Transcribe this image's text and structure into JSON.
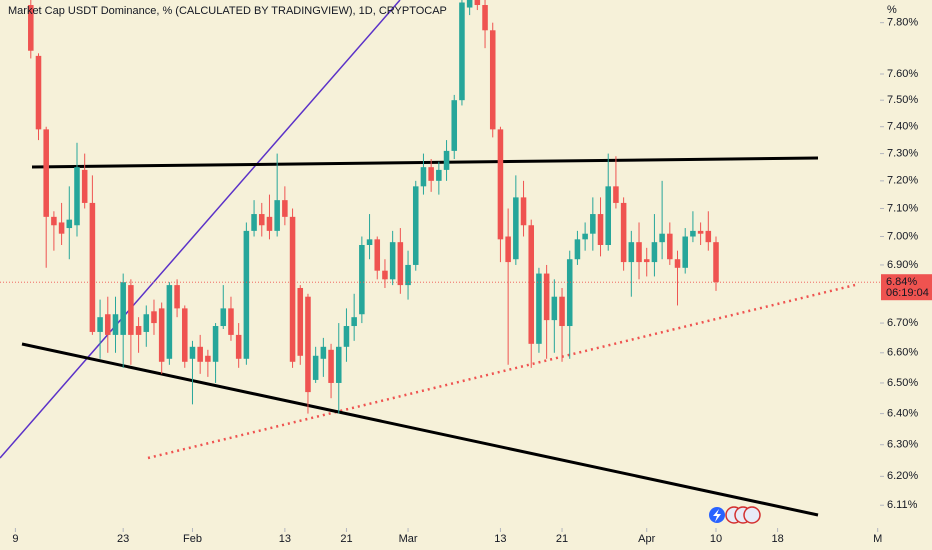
{
  "chart_data": {
    "type": "candlestick",
    "title": "Market Cap USDT Dominance, % (CALCULATED BY TRADINGVIEW), 1D, CRYPTOCAP",
    "y_unit": "%",
    "log_scale": true,
    "grid": false,
    "up_color": "#26a69a",
    "down_color": "#ef5350",
    "xlim": [
      7,
      121.3
    ],
    "xticks": [
      {
        "value": 9,
        "label": "9"
      },
      {
        "value": 23,
        "label": "23"
      },
      {
        "value": 32,
        "label": "Feb"
      },
      {
        "value": 44,
        "label": "13"
      },
      {
        "value": 52,
        "label": "21"
      },
      {
        "value": 60,
        "label": "Mar"
      },
      {
        "value": 72,
        "label": "13"
      },
      {
        "value": 80,
        "label": "21"
      },
      {
        "value": 91,
        "label": "Apr"
      },
      {
        "value": 100,
        "label": "10"
      },
      {
        "value": 108,
        "label": "18"
      },
      {
        "value": 121,
        "label": "M"
      }
    ],
    "ylim": [
      6.04,
      7.89
    ],
    "yticks": [
      {
        "value": 6.11,
        "label": "6.11%"
      },
      {
        "value": 6.2,
        "label": "6.20%"
      },
      {
        "value": 6.3,
        "label": "6.30%"
      },
      {
        "value": 6.4,
        "label": "6.40%"
      },
      {
        "value": 6.5,
        "label": "6.50%"
      },
      {
        "value": 6.6,
        "label": "6.60%"
      },
      {
        "value": 6.7,
        "label": "6.70%"
      },
      {
        "value": 6.9,
        "label": "6.90%"
      },
      {
        "value": 7.0,
        "label": "7.00%"
      },
      {
        "value": 7.1,
        "label": "7.10%"
      },
      {
        "value": 7.2,
        "label": "7.20%"
      },
      {
        "value": 7.3,
        "label": "7.30%"
      },
      {
        "value": 7.4,
        "label": "7.40%"
      },
      {
        "value": 7.5,
        "label": "7.50%"
      },
      {
        "value": 7.6,
        "label": "7.60%"
      },
      {
        "value": 7.8,
        "label": "7.80%"
      }
    ],
    "last_price": {
      "value": 6.84,
      "label": "6.84%"
    },
    "countdown": "06:19:04",
    "x": [
      11,
      12,
      13,
      14,
      15,
      16,
      17,
      18,
      19,
      20,
      21,
      22,
      23,
      24,
      25,
      26,
      27,
      28,
      29,
      30,
      31,
      32,
      33,
      34,
      35,
      36,
      37,
      38,
      39,
      40,
      41,
      42,
      43,
      44,
      45,
      46,
      47,
      48,
      49,
      50,
      51,
      52,
      53,
      54,
      55,
      56,
      57,
      58,
      59,
      60,
      61,
      62,
      63,
      64,
      65,
      66,
      67,
      68,
      69,
      70,
      71,
      72,
      73,
      74,
      75,
      76,
      77,
      78,
      79,
      80,
      81,
      82,
      83,
      84,
      85,
      86,
      87,
      88,
      89,
      90,
      91,
      92,
      93,
      94,
      95,
      96,
      97,
      98,
      99,
      100
    ],
    "open": [
      7.87,
      7.67,
      7.39,
      7.07,
      7.05,
      7.03,
      7.04,
      7.24,
      7.12,
      6.67,
      6.73,
      6.66,
      6.66,
      6.83,
      6.69,
      6.67,
      6.74,
      6.75,
      6.58,
      6.83,
      6.75,
      6.58,
      6.62,
      6.59,
      6.57,
      6.69,
      6.75,
      6.66,
      6.58,
      7.02,
      7.08,
      7.07,
      7.02,
      7.13,
      7.07,
      6.82,
      6.79,
      6.51,
      6.58,
      6.61,
      6.5,
      6.62,
      6.69,
      6.73,
      6.97,
      6.99,
      6.88,
      6.85,
      6.98,
      6.83,
      6.9,
      7.18,
      7.25,
      7.2,
      7.24,
      7.31,
      7.5,
      7.86,
      7.89,
      7.87,
      7.77,
      7.39,
      7.0,
      6.92,
      7.14,
      7.04,
      6.63,
      6.87,
      6.71,
      6.79,
      6.69,
      6.92,
      6.99,
      7.01,
      7.08,
      6.97,
      7.18,
      7.12,
      6.91,
      6.98,
      6.92,
      6.91,
      6.98,
      7.01,
      6.92,
      6.89,
      7.0,
      7.02,
      7.02,
      6.98
    ],
    "high": [
      7.89,
      7.68,
      7.4,
      7.09,
      7.12,
      7.18,
      7.34,
      7.3,
      7.22,
      6.78,
      6.79,
      6.79,
      6.87,
      6.85,
      6.72,
      6.76,
      6.78,
      6.77,
      6.84,
      6.85,
      6.76,
      6.64,
      6.66,
      6.61,
      6.7,
      6.83,
      6.79,
      6.7,
      7.05,
      7.13,
      7.12,
      7.15,
      7.3,
      7.18,
      7.1,
      6.83,
      6.8,
      6.62,
      6.65,
      6.63,
      6.7,
      6.75,
      6.8,
      7.0,
      7.08,
      7.0,
      6.92,
      7.02,
      7.03,
      6.95,
      7.2,
      7.3,
      7.28,
      7.27,
      7.35,
      7.52,
      7.89,
      7.89,
      7.89,
      7.89,
      7.8,
      7.4,
      7.1,
      7.22,
      7.2,
      7.06,
      6.89,
      6.9,
      6.85,
      6.82,
      6.95,
      7.02,
      7.05,
      7.14,
      7.14,
      7.3,
      7.29,
      7.14,
      7.02,
      7.05,
      6.96,
      7.08,
      7.2,
      7.05,
      6.95,
      7.03,
      7.09,
      7.05,
      7.09,
      7.0
    ],
    "low": [
      7.66,
      7.35,
      6.89,
      6.95,
      6.97,
      6.92,
      7.0,
      7.1,
      6.66,
      6.58,
      6.6,
      6.6,
      6.55,
      6.56,
      6.6,
      6.62,
      6.66,
      6.53,
      6.56,
      6.72,
      6.55,
      6.43,
      6.53,
      6.52,
      6.5,
      6.68,
      6.64,
      6.55,
      6.56,
      7.0,
      7.0,
      6.99,
      7.0,
      7.04,
      6.55,
      6.56,
      6.4,
      6.5,
      6.52,
      6.45,
      6.4,
      6.57,
      6.64,
      6.7,
      6.92,
      6.85,
      6.82,
      6.83,
      6.8,
      6.78,
      6.88,
      7.15,
      7.16,
      7.15,
      7.2,
      7.28,
      7.48,
      7.83,
      7.85,
      7.7,
      7.36,
      6.91,
      6.56,
      6.9,
      7.0,
      6.55,
      6.6,
      6.58,
      6.6,
      6.57,
      6.58,
      6.9,
      6.95,
      6.95,
      6.93,
      6.95,
      7.1,
      6.88,
      6.79,
      6.85,
      6.86,
      6.86,
      6.92,
      6.9,
      6.76,
      6.87,
      6.98,
      6.97,
      6.95,
      6.81
    ],
    "close": [
      7.69,
      7.39,
      7.07,
      7.04,
      7.01,
      7.06,
      7.25,
      7.12,
      6.67,
      6.72,
      6.66,
      6.73,
      6.84,
      6.66,
      6.66,
      6.73,
      6.7,
      6.57,
      6.83,
      6.75,
      6.57,
      6.62,
      6.57,
      6.57,
      6.69,
      6.75,
      6.66,
      6.58,
      7.02,
      7.08,
      7.04,
      7.02,
      7.13,
      7.07,
      6.57,
      6.59,
      6.47,
      6.59,
      6.62,
      6.5,
      6.62,
      6.69,
      6.72,
      6.97,
      6.99,
      6.88,
      6.85,
      6.98,
      6.83,
      6.9,
      7.18,
      7.25,
      7.2,
      7.24,
      7.31,
      7.5,
      7.88,
      7.89,
      7.87,
      7.77,
      7.39,
      6.99,
      6.91,
      7.14,
      7.04,
      6.63,
      6.87,
      6.71,
      6.79,
      6.69,
      6.92,
      6.99,
      7.01,
      7.08,
      6.97,
      7.18,
      7.12,
      6.91,
      6.98,
      6.91,
      6.91,
      6.98,
      7.01,
      6.92,
      6.89,
      7.0,
      7.02,
      7.01,
      6.98,
      6.84
    ]
  }
}
